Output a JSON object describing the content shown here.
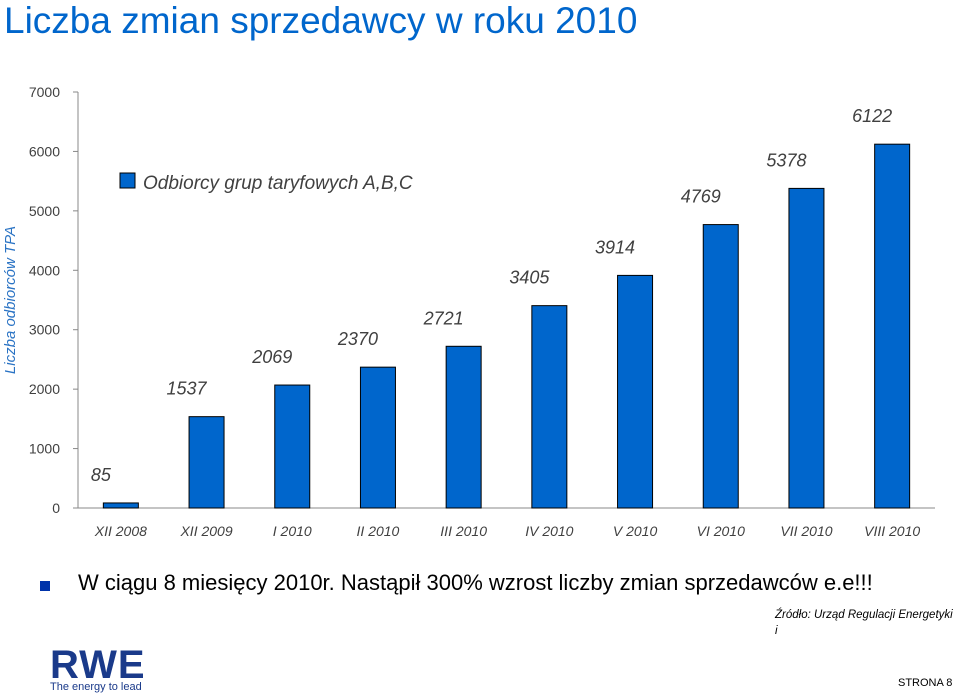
{
  "page": {
    "title": "Liczba zmian sprzedawcy w roku 2010",
    "note": "W ciągu 8 miesięcy 2010r. Nastąpił 300% wzrost liczby zmian sprzedawców e.e!!!",
    "source": "Źródło: Urząd Regulacji Energetyki i",
    "page_number": "STRONA 8",
    "logo": {
      "text": "RWE",
      "tagline": "The energy to lead"
    }
  },
  "chart_data": {
    "type": "bar",
    "title": "",
    "ylabel": "Liczba odbiorców TPA",
    "xlabel": "",
    "ylim": [
      0,
      7000
    ],
    "yticks": [
      0,
      1000,
      2000,
      3000,
      4000,
      5000,
      6000,
      7000
    ],
    "grid": false,
    "legend": "top-left",
    "categories": [
      "XII 2008",
      "XII 2009",
      "I 2010",
      "II 2010",
      "III 2010",
      "IV 2010",
      "V 2010",
      "VI 2010",
      "VII 2010",
      "VIII 2010"
    ],
    "series": [
      {
        "name": "Odbiorcy grup taryfowych A,B,C",
        "color": "#0066cc",
        "values": [
          85,
          1537,
          2069,
          2370,
          2721,
          3405,
          3914,
          4769,
          5378,
          6122
        ]
      }
    ]
  }
}
